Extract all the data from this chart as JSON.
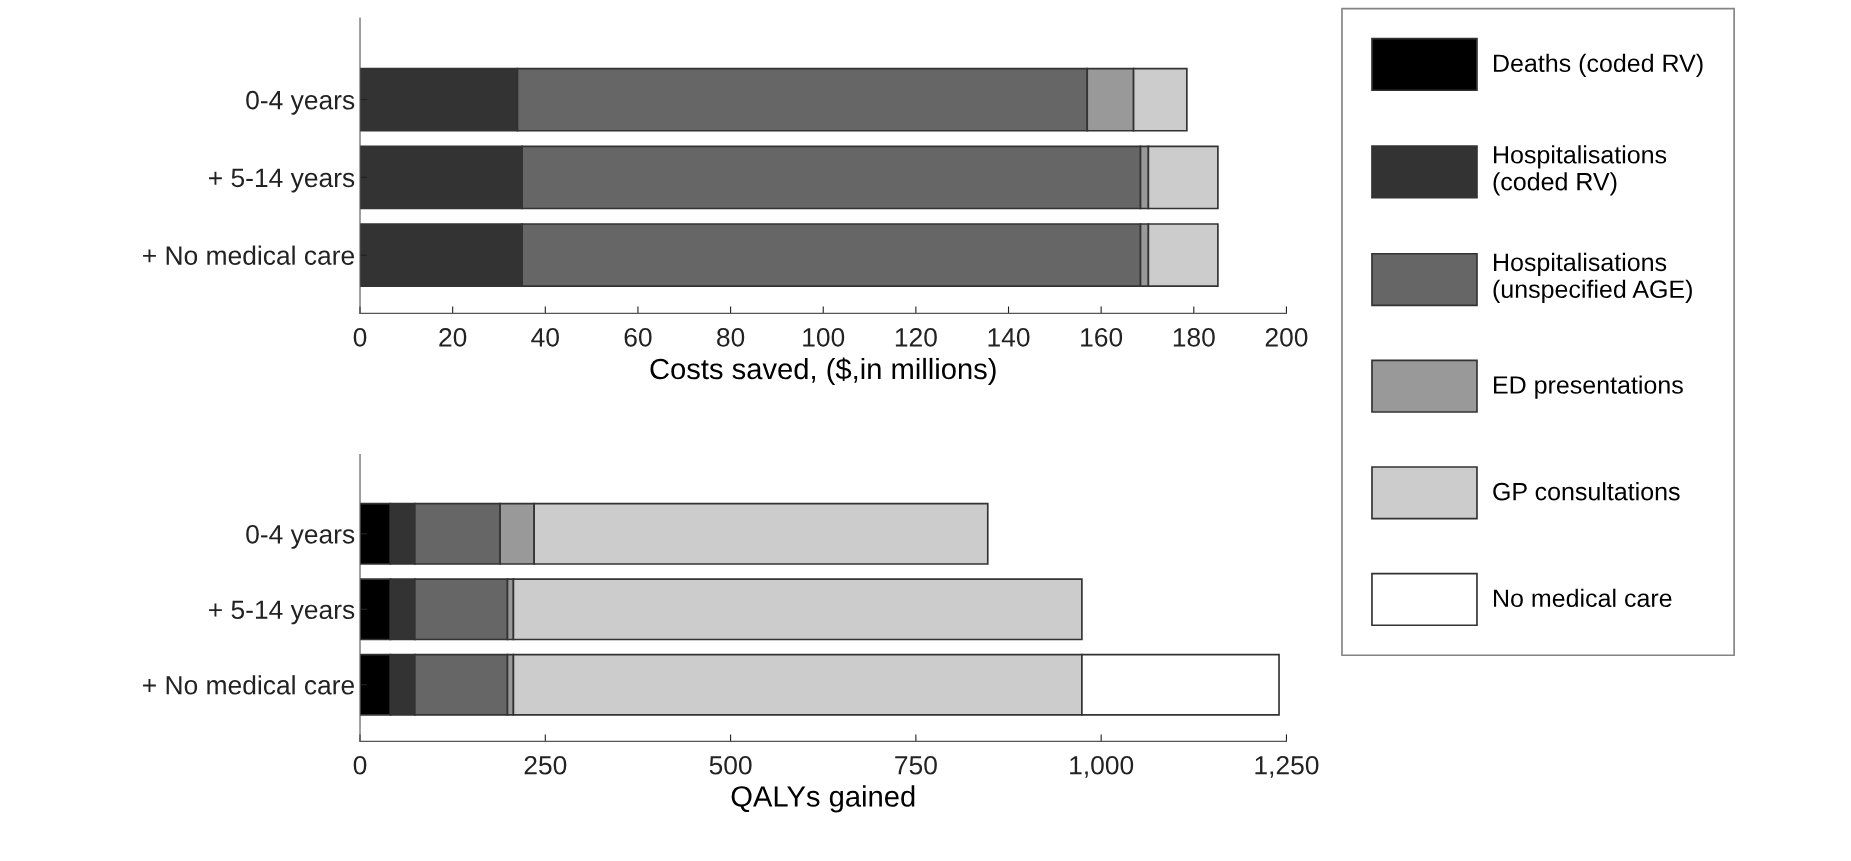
{
  "chart_data": [
    {
      "type": "bar",
      "orientation": "horizontal",
      "stacked": true,
      "xlabel": "Costs saved, ($,in millions)",
      "categories": [
        "0-4 years",
        "+ 5-14 years",
        "+ No medical care"
      ],
      "xlim": [
        0,
        200
      ],
      "xticks": [
        0,
        20,
        40,
        60,
        80,
        100,
        120,
        140,
        160,
        180,
        200
      ],
      "legend": "right",
      "grid": false,
      "series": [
        {
          "name": "Deaths (coded RV)",
          "color": "#000000",
          "values": [
            null,
            null,
            null
          ]
        },
        {
          "name": "Hospitalisations\n(coded RV)",
          "color": "#333333",
          "values": [
            34,
            35,
            35
          ]
        },
        {
          "name": "Hospitalisations\n(unspecified AGE)",
          "color": "#666666",
          "values": [
            123,
            133.5,
            133.5
          ]
        },
        {
          "name": "ED presentations",
          "color": "#999999",
          "values": [
            10,
            1.7,
            1.7
          ]
        },
        {
          "name": "GP consultations",
          "color": "#cccccc",
          "values": [
            11.5,
            15,
            15
          ]
        },
        {
          "name": "No medical care",
          "color": "#ffffff",
          "values": [
            null,
            null,
            null
          ]
        }
      ]
    },
    {
      "type": "bar",
      "orientation": "horizontal",
      "stacked": true,
      "xlabel": "QALYs gained",
      "categories": [
        "0-4 years",
        "+ 5-14 years",
        "+ No medical care"
      ],
      "xlim": [
        0,
        1250
      ],
      "xticks": [
        0,
        250,
        500,
        750,
        {
          "value": 1000,
          "label": "1,000"
        },
        {
          "value": 1250,
          "label": "1,250"
        }
      ],
      "legend": false,
      "grid": false,
      "series": [
        {
          "color": "#000000",
          "values": [
            41,
            41,
            41
          ]
        },
        {
          "color": "#333333",
          "values": [
            33,
            33,
            33
          ]
        },
        {
          "color": "#666666",
          "values": [
            115,
            125,
            125
          ]
        },
        {
          "color": "#999999",
          "values": [
            46,
            8,
            8
          ]
        },
        {
          "color": "#cccccc",
          "values": [
            612,
            767,
            767
          ]
        },
        {
          "color": "#ffffff",
          "values": [
            null,
            null,
            266
          ]
        }
      ]
    }
  ]
}
